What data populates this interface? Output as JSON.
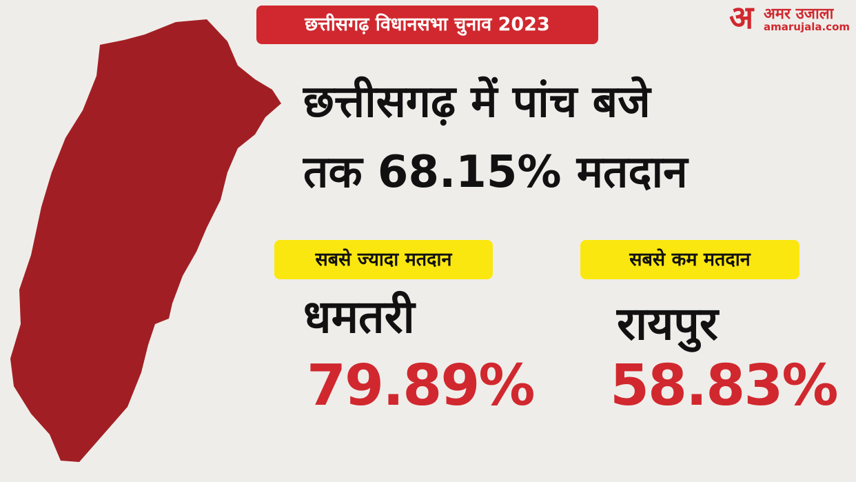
{
  "header": {
    "badge": "छत्तीसगढ़ विधानसभा चुनाव 2023",
    "logo_mark": "अ",
    "logo_name": "अमर उजाला",
    "logo_url": "amarujala.com"
  },
  "headline": [
    "छत्तीसगढ़ में  पांच बजे",
    "तक 68.15% मतदान"
  ],
  "stats": [
    {
      "label": "सबसे ज्यादा मतदान",
      "district": "धमतरी",
      "turnout": "79.89%"
    },
    {
      "label": "सबसे कम मतदान",
      "district": "रायपुर",
      "turnout": "58.83%"
    }
  ]
}
